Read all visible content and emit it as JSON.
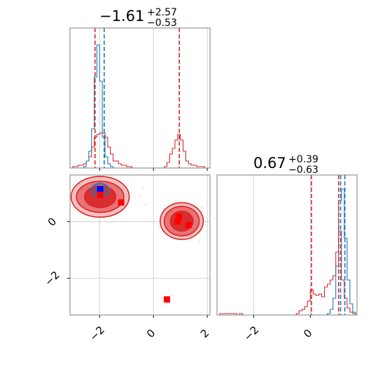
{
  "chart_data": [
    {
      "type": "histogram",
      "panel": "top-left",
      "title": {
        "main": "−1.61",
        "sup": "+2.57",
        "sub": "−0.53"
      },
      "xlim": [
        -3.1,
        2.1
      ],
      "xticks": [
        -2,
        0,
        2
      ],
      "grid": true,
      "series": [
        {
          "color": "#d62728",
          "bins_x": [
            -3.1,
            -3.0,
            -2.9,
            -2.8,
            -2.7,
            -2.6,
            -2.5,
            -2.4,
            -2.3,
            -2.2,
            -2.1,
            -2.0,
            -1.9,
            -1.8,
            -1.7,
            -1.6,
            -1.5,
            -1.4,
            -1.3,
            -1.2,
            -1.1,
            -1.0,
            -0.9,
            -0.8,
            -0.7,
            -0.6,
            -0.5,
            -0.4,
            -0.3,
            -0.2,
            -0.1,
            0.0,
            0.1,
            0.2,
            0.3,
            0.4,
            0.5,
            0.6,
            0.7,
            0.8,
            0.9,
            1.0,
            1.1,
            1.2,
            1.3,
            1.4,
            1.5,
            1.6,
            1.7,
            1.8,
            1.9,
            2.0
          ],
          "counts": [
            0,
            0.01,
            0.01,
            0.02,
            0.02,
            0.03,
            0.05,
            0.08,
            0.15,
            0.22,
            0.24,
            0.25,
            0.25,
            0.22,
            0.15,
            0.1,
            0.05,
            0.05,
            0.03,
            0.02,
            0.02,
            0.01,
            0.01,
            0.0,
            0.0,
            0.0,
            0.0,
            0.0,
            0.0,
            0.0,
            0.0,
            0.0,
            0.0,
            0.0,
            0.0,
            0.01,
            0.04,
            0.1,
            0.14,
            0.2,
            0.24,
            0.2,
            0.12,
            0.05,
            0.03,
            0.02,
            0.02,
            0.01,
            0.01,
            0.01,
            0.0
          ]
        },
        {
          "color": "#1f77b4",
          "bins_x": [
            -2.6,
            -2.5,
            -2.4,
            -2.3,
            -2.2,
            -2.1,
            -2.0,
            -1.9,
            -1.8,
            -1.7,
            -1.6,
            -1.5
          ],
          "counts": [
            0.01,
            0.05,
            0.12,
            0.28,
            0.65,
            0.88,
            0.62,
            0.22,
            0.08,
            0.03,
            0.01
          ]
        }
      ],
      "vlines": [
        {
          "x": -2.17,
          "color": "#d62728",
          "style": "dashed"
        },
        {
          "x": -1.83,
          "color": "#1f77b4",
          "style": "dashed"
        },
        {
          "x": 0.96,
          "color": "#d62728",
          "style": "dashed"
        }
      ],
      "ylim": [
        0,
        1
      ]
    },
    {
      "type": "contour",
      "panel": "bottom-left",
      "xlim": [
        -3.1,
        2.1
      ],
      "ylim": [
        -3.3,
        1.65
      ],
      "xticks": [
        -2,
        0,
        2
      ],
      "yticks": [
        -2,
        0
      ],
      "grid": true,
      "clusters": [
        {
          "color": "#d62728",
          "cx": -1.98,
          "cy": 0.88,
          "levels": [
            [
              1.08,
              0.72
            ],
            [
              0.88,
              0.55
            ],
            [
              0.58,
              0.38
            ]
          ]
        },
        {
          "color": "#d62728",
          "cx": 1.05,
          "cy": 0.02,
          "levels": [
            [
              0.8,
              0.65
            ],
            [
              0.65,
              0.52
            ],
            [
              0.42,
              0.35
            ]
          ]
        },
        {
          "color": "#1f77b4",
          "cx": -1.98,
          "cy": 1.12,
          "levels": [
            [
              0.32,
              0.22
            ],
            [
              0.16,
              0.11
            ]
          ]
        }
      ],
      "markers": [
        {
          "x": -1.98,
          "y": 1.15,
          "color": "#0000ff"
        },
        {
          "x": -1.98,
          "y": 0.95,
          "color": "#ff0000"
        },
        {
          "x": -1.2,
          "y": 0.68,
          "color": "#ff0000"
        },
        {
          "x": 0.95,
          "y": 0.18,
          "color": "#ff0000"
        },
        {
          "x": 0.9,
          "y": 0.0,
          "color": "#ff0000"
        },
        {
          "x": 1.3,
          "y": -0.12,
          "color": "#ff0000"
        },
        {
          "x": 0.5,
          "y": -2.75,
          "color": "#ff0000"
        }
      ]
    },
    {
      "type": "histogram",
      "panel": "bottom-right",
      "title": {
        "main": "0.67",
        "sup": "+0.39",
        "sub": "−0.63"
      },
      "xlim": [
        -3.3,
        1.65
      ],
      "xticks": [
        -2,
        0
      ],
      "grid": true,
      "series": [
        {
          "color": "#d62728",
          "bins_x": [
            -3.3,
            -3.2,
            -3.1,
            -3.0,
            -2.9,
            -2.8,
            -2.7,
            -2.6,
            -2.5,
            -2.4,
            -2.3,
            -2.2,
            -2.1,
            -2.0,
            -1.9,
            -1.8,
            -1.7,
            -1.6,
            -1.5,
            -1.4,
            -1.3,
            -1.2,
            -1.1,
            -1.0,
            -0.9,
            -0.8,
            -0.7,
            -0.6,
            -0.5,
            -0.4,
            -0.3,
            -0.2,
            -0.1,
            0.0,
            0.1,
            0.2,
            0.3,
            0.4,
            0.5,
            0.6,
            0.7,
            0.8,
            0.9,
            1.0,
            1.1,
            1.2,
            1.3,
            1.4,
            1.5,
            1.6
          ],
          "counts": [
            0,
            0.01,
            0.01,
            0.01,
            0.01,
            0.01,
            0.01,
            0.0,
            0.01,
            0.0,
            0.0,
            0.0,
            0.0,
            0.0,
            0.0,
            0.0,
            0.0,
            0.0,
            0.0,
            0.0,
            0.0,
            0.0,
            0.0,
            0.0,
            0.0,
            0.0,
            0.0,
            0.0,
            0.01,
            0.03,
            0.04,
            0.06,
            0.1,
            0.18,
            0.15,
            0.14,
            0.15,
            0.13,
            0.2,
            0.22,
            0.25,
            0.28,
            0.45,
            0.6,
            0.25,
            0.12,
            0.05,
            0.02,
            0.01
          ]
        },
        {
          "color": "#1f77b4",
          "bins_x": [
            0.6,
            0.7,
            0.8,
            0.9,
            1.0,
            1.1,
            1.2,
            1.3,
            1.4,
            1.5,
            1.6
          ],
          "counts": [
            0.01,
            0.04,
            0.12,
            0.35,
            0.82,
            0.9,
            0.55,
            0.25,
            0.08,
            0.02
          ]
        }
      ],
      "vlines": [
        {
          "x": 0.04,
          "color": "#d62728",
          "style": "dashed"
        },
        {
          "x": 1.0,
          "color": "#d62728",
          "style": "dashed"
        },
        {
          "x": 1.07,
          "color": "#1f77b4",
          "style": "dashed"
        },
        {
          "x": 1.22,
          "color": "#1f77b4",
          "style": "dashed"
        }
      ],
      "ylim": [
        0,
        1
      ]
    }
  ]
}
